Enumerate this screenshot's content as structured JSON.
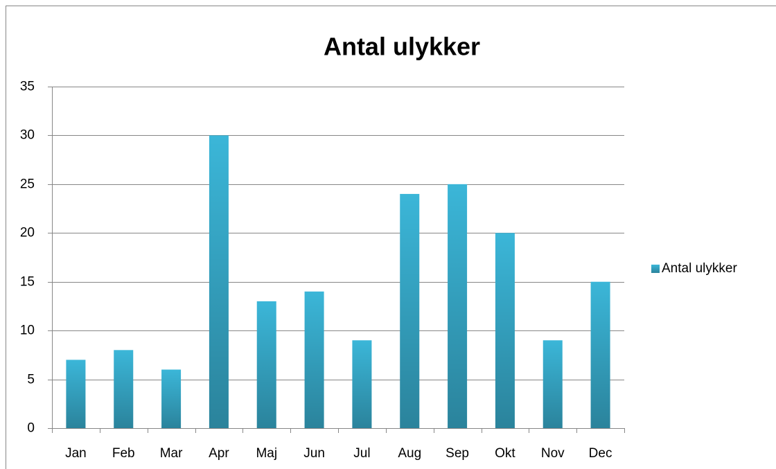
{
  "chart_data": {
    "type": "bar",
    "title": "Antal ulykker",
    "categories": [
      "Jan",
      "Feb",
      "Mar",
      "Apr",
      "Maj",
      "Jun",
      "Jul",
      "Aug",
      "Sep",
      "Okt",
      "Nov",
      "Dec"
    ],
    "series": [
      {
        "name": "Antal ulykker",
        "color": "#3bb6d8",
        "values": [
          7,
          8,
          6,
          30,
          13,
          14,
          9,
          24,
          25,
          20,
          9,
          15
        ]
      }
    ],
    "ylim": [
      0,
      35
    ],
    "yticks": [
      0,
      5,
      10,
      15,
      20,
      25,
      30,
      35
    ],
    "grid": true,
    "legend": "right"
  }
}
